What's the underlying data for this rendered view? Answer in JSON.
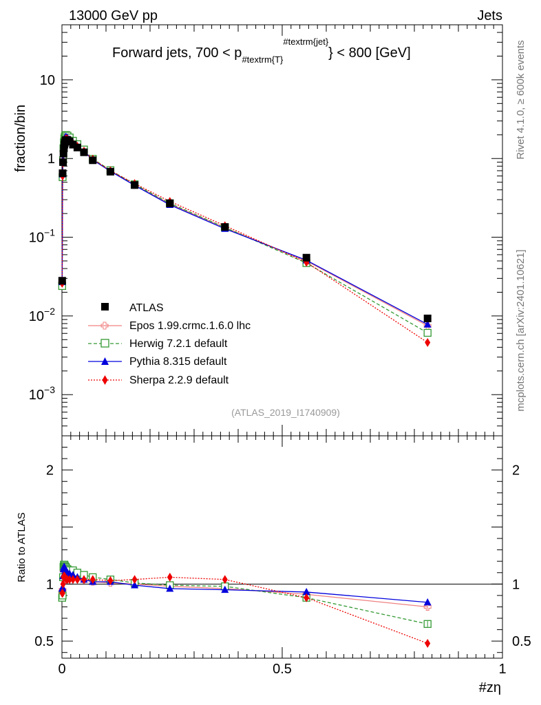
{
  "header": {
    "energy_label": "13000 GeV pp",
    "process_label": "Jets",
    "side_label_top": "Rivet 4.1.0, ≥ 600k events",
    "side_label_bottom": "mcplots.cern.ch [arXiv:2401.10621]",
    "analysis_id": "(ATLAS_2019_I1740909)"
  },
  "chart_data": [
    {
      "type": "line",
      "panel": "main",
      "title_main": "Forward jets, 700 < p",
      "title_sub": "#textrm{T}",
      "title_sup": "#textrm{jet}",
      "title_end": "} < 800 [GeV]",
      "xlabel": "#zη",
      "ylabel": "fraction/bin",
      "yscale": "log",
      "xlim": [
        0,
        1
      ],
      "ylim": [
        0.0003,
        50
      ],
      "ytick_labels": [
        {
          "value": 10,
          "base": "10",
          "exp": ""
        },
        {
          "value": 1,
          "base": "1",
          "exp": ""
        },
        {
          "value": 0.1,
          "base": "10",
          "exp": "−1"
        },
        {
          "value": 0.01,
          "base": "10",
          "exp": "−2"
        },
        {
          "value": 0.001,
          "base": "10",
          "exp": "−3"
        }
      ],
      "x": [
        0.0005,
        0.0015,
        0.0025,
        0.0035,
        0.0045,
        0.0055,
        0.0065,
        0.0075,
        0.0085,
        0.0095,
        0.0125,
        0.0175,
        0.025,
        0.035,
        0.05,
        0.07,
        0.11,
        0.165,
        0.245,
        0.37,
        0.555,
        0.83
      ],
      "series": [
        {
          "name": "ATLAS",
          "color": "#000000",
          "marker": "square",
          "line": "none",
          "values": [
            0.028,
            0.65,
            0.9,
            1.15,
            1.35,
            1.5,
            1.58,
            1.65,
            1.7,
            1.72,
            1.72,
            1.65,
            1.5,
            1.38,
            1.2,
            0.95,
            0.68,
            0.46,
            0.27,
            0.135,
            0.055,
            0.0093
          ]
        },
        {
          "name": "Epos 1.99.crmc.1.6.0 lhc",
          "color": "#f08080",
          "marker": "cross-open",
          "line": "solid",
          "values": [
            0.026,
            0.62,
            0.95,
            1.3,
            1.55,
            1.72,
            1.82,
            1.88,
            1.9,
            1.9,
            1.87,
            1.78,
            1.6,
            1.45,
            1.25,
            0.97,
            0.69,
            0.46,
            0.265,
            0.132,
            0.05,
            0.0075
          ]
        },
        {
          "name": "Herwig 7.2.1 default",
          "color": "#339933",
          "marker": "square-open",
          "line": "dashed",
          "values": [
            0.024,
            0.58,
            0.95,
            1.35,
            1.62,
            1.8,
            1.9,
            1.95,
            1.98,
            1.98,
            1.95,
            1.85,
            1.68,
            1.52,
            1.3,
            0.99,
            0.71,
            0.47,
            0.27,
            0.133,
            0.047,
            0.0061
          ]
        },
        {
          "name": "Pythia 8.315 default",
          "color": "#0000dd",
          "marker": "triangle",
          "line": "solid",
          "values": [
            0.027,
            0.63,
            0.96,
            1.3,
            1.55,
            1.72,
            1.8,
            1.86,
            1.88,
            1.87,
            1.84,
            1.75,
            1.58,
            1.43,
            1.23,
            0.96,
            0.69,
            0.455,
            0.258,
            0.128,
            0.051,
            0.0078
          ]
        },
        {
          "name": "Sherpa 2.2.9 default",
          "color": "#ee0000",
          "marker": "diamond",
          "line": "dotted",
          "values": [
            0.026,
            0.6,
            0.9,
            1.22,
            1.45,
            1.6,
            1.68,
            1.74,
            1.77,
            1.78,
            1.77,
            1.7,
            1.55,
            1.43,
            1.24,
            0.98,
            0.7,
            0.48,
            0.285,
            0.14,
            0.048,
            0.0046
          ]
        }
      ]
    },
    {
      "type": "line",
      "panel": "ratio",
      "ylabel": "Ratio to ATLAS",
      "xlabel": "#zη",
      "ylim": [
        0.35,
        2.3
      ],
      "xlim": [
        0,
        1
      ],
      "ytick_labels": [
        "2",
        "1",
        "0.5"
      ],
      "xtick_labels": [
        "0",
        "0.5",
        "1"
      ],
      "x": [
        0.0005,
        0.0015,
        0.0025,
        0.0035,
        0.0045,
        0.0055,
        0.0065,
        0.0075,
        0.0085,
        0.0095,
        0.0125,
        0.0175,
        0.025,
        0.035,
        0.05,
        0.07,
        0.11,
        0.165,
        0.245,
        0.37,
        0.555,
        0.83
      ],
      "series": [
        {
          "name": "Epos 1.99.crmc.1.6.0 lhc",
          "color": "#f08080",
          "marker": "cross-open",
          "line": "solid",
          "values": [
            0.93,
            0.95,
            1.05,
            1.12,
            1.13,
            1.14,
            1.14,
            1.13,
            1.12,
            1.1,
            1.09,
            1.08,
            1.07,
            1.05,
            1.04,
            1.02,
            1.01,
            1.0,
            0.98,
            0.96,
            0.91,
            0.8
          ]
        },
        {
          "name": "Herwig 7.2.1 default",
          "color": "#339933",
          "marker": "square-open",
          "line": "dashed",
          "values": [
            0.88,
            0.9,
            1.06,
            1.15,
            1.17,
            1.17,
            1.16,
            1.15,
            1.15,
            1.14,
            1.13,
            1.12,
            1.12,
            1.1,
            1.08,
            1.06,
            1.04,
            1.01,
            0.99,
            0.98,
            0.88,
            0.65
          ]
        },
        {
          "name": "Pythia 8.315 default",
          "color": "#0000dd",
          "marker": "triangle",
          "line": "solid",
          "values": [
            0.96,
            0.97,
            1.07,
            1.13,
            1.15,
            1.15,
            1.14,
            1.13,
            1.12,
            1.11,
            1.1,
            1.09,
            1.08,
            1.06,
            1.04,
            1.02,
            1.02,
            0.99,
            0.96,
            0.95,
            0.93,
            0.84
          ]
        },
        {
          "name": "Sherpa 2.2.9 default",
          "color": "#ee0000",
          "marker": "diamond",
          "line": "dotted",
          "values": [
            0.92,
            0.92,
            1.0,
            1.06,
            1.07,
            1.07,
            1.06,
            1.06,
            1.05,
            1.04,
            1.04,
            1.04,
            1.04,
            1.04,
            1.04,
            1.04,
            1.03,
            1.04,
            1.06,
            1.04,
            0.88,
            0.48
          ]
        }
      ]
    }
  ]
}
